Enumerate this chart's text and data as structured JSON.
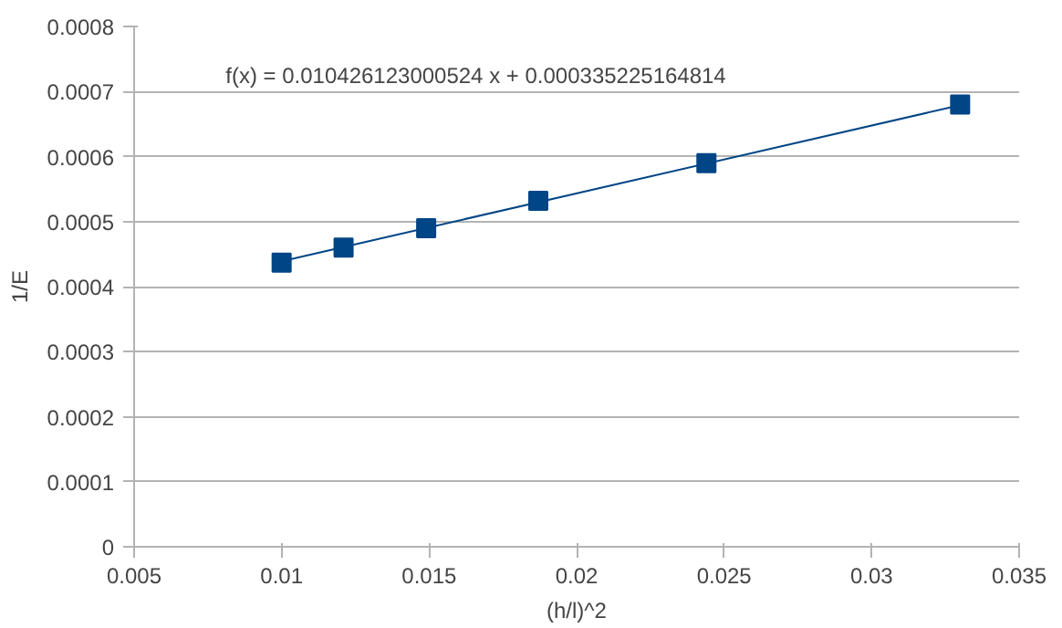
{
  "chart_data": {
    "type": "scatter",
    "xlabel": "(h/l)^2",
    "ylabel": "1/E",
    "annotations": [
      "f(x) = 0.010426123000524 x + 0.000335225164814"
    ],
    "xlim": [
      0.005,
      0.035
    ],
    "xticks": [
      0.005,
      0.01,
      0.015,
      0.02,
      0.025,
      0.03,
      0.035
    ],
    "ylim": [
      0,
      0.0008
    ],
    "yticks": [
      0,
      0.0001,
      0.0002,
      0.0003,
      0.0004,
      0.0005,
      0.0006,
      0.0007,
      0.0008
    ],
    "grid": "y",
    "marker": "square",
    "series": [
      {
        "color": "#004586",
        "x": [
          0.01,
          0.0121,
          0.0149,
          0.0187,
          0.0244,
          0.033
        ],
        "values": [
          0.000437,
          0.00046,
          0.00049,
          0.000532,
          0.00059,
          0.00068
        ]
      },
      {
        "type": "line",
        "color": "#004586",
        "marker": "none",
        "x": [
          0.01,
          0.033
        ],
        "values": [
          0.000439,
          0.000679
        ]
      }
    ]
  }
}
